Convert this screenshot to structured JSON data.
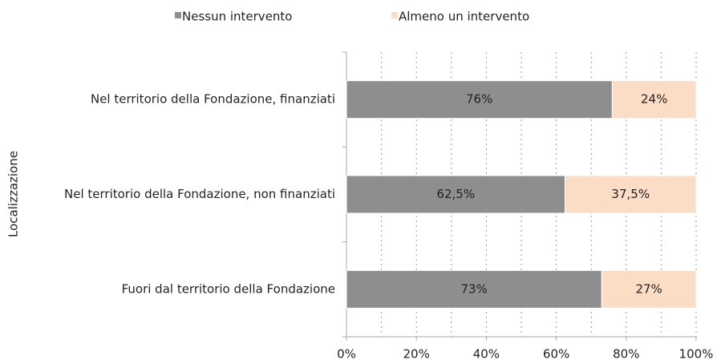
{
  "chart_data": {
    "type": "stacked_barh",
    "categories": [
      "Nel territorio della Fondazione, finanziati",
      "Nel territorio della Fondazione, non finanziati",
      "Fuori dal territorio della Fondazione"
    ],
    "series": [
      {
        "name": "Nessun intervento",
        "color": "#8e8e8e",
        "values": [
          76,
          62.5,
          73
        ],
        "value_labels": [
          "76%",
          "62,5%",
          "73%"
        ]
      },
      {
        "name": "Almeno un intervento",
        "color": "#fbdcc4",
        "values": [
          24,
          37.5,
          27
        ],
        "value_labels": [
          "24%",
          "37,5%",
          "27%"
        ]
      }
    ],
    "ylabel": "Localizzazione",
    "xlim": [
      0,
      100
    ],
    "xticks": [
      {
        "value": 0,
        "label": "0%"
      },
      {
        "value": 20,
        "label": "20%"
      },
      {
        "value": 40,
        "label": "40%"
      },
      {
        "value": 60,
        "label": "60%"
      },
      {
        "value": 80,
        "label": "80%"
      },
      {
        "value": 100,
        "label": "100%"
      }
    ],
    "xminorticks": [
      10,
      30,
      50,
      70,
      90
    ],
    "grid": true,
    "legend": "top"
  }
}
